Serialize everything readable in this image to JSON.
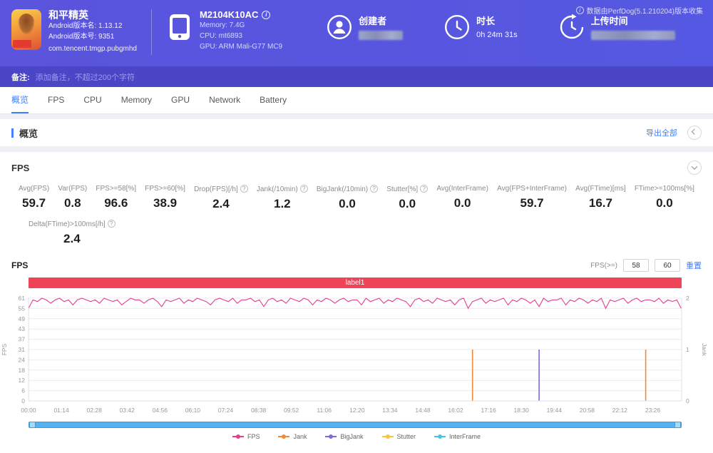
{
  "header": {
    "app": {
      "title": "和平精英",
      "version_name": "Android版本名: 1.13.12",
      "version_code": "Android版本号: 9351",
      "package": "com.tencent.tmgp.pubgmhd"
    },
    "device": {
      "model": "M2104K10AC",
      "memory": "Memory: 7.4G",
      "cpu": "CPU: mt6893",
      "gpu": "GPU: ARM Mali-G77 MC9"
    },
    "creator_label": "创建者",
    "duration_label": "时长",
    "duration_value": "0h 24m 31s",
    "upload_label": "上传时间",
    "collector_note": "数据由PerfDog(5.1.210204)版本收集"
  },
  "note_bar": {
    "label": "备注:",
    "placeholder": "添加备注，不超过200个字符"
  },
  "tabs": [
    {
      "name": "overview",
      "label": "概览",
      "active": true
    },
    {
      "name": "fps",
      "label": "FPS",
      "active": false
    },
    {
      "name": "cpu",
      "label": "CPU",
      "active": false
    },
    {
      "name": "memory",
      "label": "Memory",
      "active": false
    },
    {
      "name": "gpu",
      "label": "GPU",
      "active": false
    },
    {
      "name": "network",
      "label": "Network",
      "active": false
    },
    {
      "name": "battery",
      "label": "Battery",
      "active": false
    }
  ],
  "overview_section": {
    "title": "概览",
    "export_all": "导出全部"
  },
  "fps_panel": {
    "title": "FPS",
    "metrics": [
      {
        "id": "avg-fps",
        "label": "Avg(FPS)",
        "value": "59.7",
        "help": false
      },
      {
        "id": "var-fps",
        "label": "Var(FPS)",
        "value": "0.8",
        "help": false
      },
      {
        "id": "fps-ge-58",
        "label": "FPS>=58[%]",
        "value": "96.6",
        "help": false
      },
      {
        "id": "fps-ge-60",
        "label": "FPS>=60[%]",
        "value": "38.9",
        "help": false
      },
      {
        "id": "drop-fps",
        "label": "Drop(FPS)[/h]",
        "value": "2.4",
        "help": true
      },
      {
        "id": "jank-10min",
        "label": "Jank(/10min)",
        "value": "1.2",
        "help": true
      },
      {
        "id": "bigjank-10min",
        "label": "BigJank(/10min)",
        "value": "0.0",
        "help": true
      },
      {
        "id": "stutter",
        "label": "Stutter[%]",
        "value": "0.0",
        "help": true
      },
      {
        "id": "avg-interframe",
        "label": "Avg(InterFrame)",
        "value": "0.0",
        "help": false
      },
      {
        "id": "avg-fps-interframe",
        "label": "Avg(FPS+InterFrame)",
        "value": "59.7",
        "help": false
      },
      {
        "id": "avg-ftime",
        "label": "Avg(FTime)[ms]",
        "value": "16.7",
        "help": false
      },
      {
        "id": "ftime-ge-100ms",
        "label": "FTime>=100ms[%]",
        "value": "0.0",
        "help": false
      }
    ],
    "metrics_row2": [
      {
        "id": "delta-ftime",
        "label": "Delta(FTime)>100ms[/h]",
        "value": "2.4",
        "help": true
      }
    ],
    "chart_title": "FPS",
    "controls": {
      "label": "FPS(>=)",
      "threshold1": "58",
      "threshold2": "60",
      "reset": "重置"
    }
  },
  "chart_data": {
    "type": "line",
    "banner": "label1",
    "x_axis": {
      "ticks": [
        "00:00",
        "01:14",
        "02:28",
        "03:42",
        "04:56",
        "06:10",
        "07:24",
        "08:38",
        "09:52",
        "11:06",
        "12:20",
        "13:34",
        "14:48",
        "16:02",
        "17:16",
        "18:30",
        "19:44",
        "20:58",
        "22:12",
        "23:26"
      ],
      "tick_interval_s": 74,
      "duration_s": 1471
    },
    "y_left": {
      "label": "FPS",
      "ticks": [
        0,
        6,
        12,
        18,
        24,
        31,
        37,
        43,
        49,
        55,
        61
      ],
      "max": 61
    },
    "y_right": {
      "label": "Jank",
      "ticks": [
        0,
        1,
        2
      ],
      "max": 2
    },
    "fps_series": {
      "name": "FPS",
      "color": "#e0408f",
      "sample_interval_s": 10,
      "values": [
        55,
        60,
        59,
        61,
        60,
        58,
        60,
        61,
        59,
        60,
        57,
        60,
        61,
        60,
        59,
        60,
        58,
        61,
        60,
        59,
        60,
        57,
        59,
        61,
        60,
        60,
        58,
        60,
        61,
        59,
        56,
        60,
        59,
        60,
        61,
        58,
        60,
        59,
        61,
        60,
        59,
        57,
        60,
        61,
        60,
        59,
        61,
        58,
        60,
        60,
        61,
        59,
        60,
        56,
        60,
        61,
        59,
        60,
        58,
        61,
        60,
        59,
        61,
        60,
        57,
        60,
        59,
        61,
        60,
        58,
        60,
        61,
        59,
        60,
        60,
        57,
        61,
        59,
        60,
        61,
        58,
        60,
        59,
        61,
        60,
        59,
        56,
        60,
        61,
        59,
        60,
        58,
        61,
        60,
        59,
        60,
        57,
        60,
        61,
        55,
        59,
        60,
        61,
        58,
        60,
        59,
        60,
        61,
        57,
        60,
        59,
        61,
        60,
        58,
        60,
        56,
        61,
        59,
        60,
        60,
        61,
        57,
        60,
        59,
        61,
        60,
        58,
        60,
        59,
        61,
        55,
        60,
        59,
        60,
        61,
        58,
        60,
        61,
        59,
        60,
        60,
        59,
        61,
        58,
        60,
        59,
        60,
        55
      ]
    },
    "jank_events": [
      {
        "time": "16:40",
        "value": 1,
        "color": "#ef8a3c"
      },
      {
        "time": "19:10",
        "value": 1,
        "color": "#7d6ade"
      },
      {
        "time": "23:10",
        "value": 1,
        "color": "#ef8a3c"
      }
    ],
    "legend": [
      {
        "name": "FPS",
        "color": "#e0408f"
      },
      {
        "name": "Jank",
        "color": "#ef8a3c"
      },
      {
        "name": "BigJank",
        "color": "#7d6ade"
      },
      {
        "name": "Stutter",
        "color": "#f5c53c"
      },
      {
        "name": "InterFrame",
        "color": "#41c8e0"
      }
    ]
  }
}
